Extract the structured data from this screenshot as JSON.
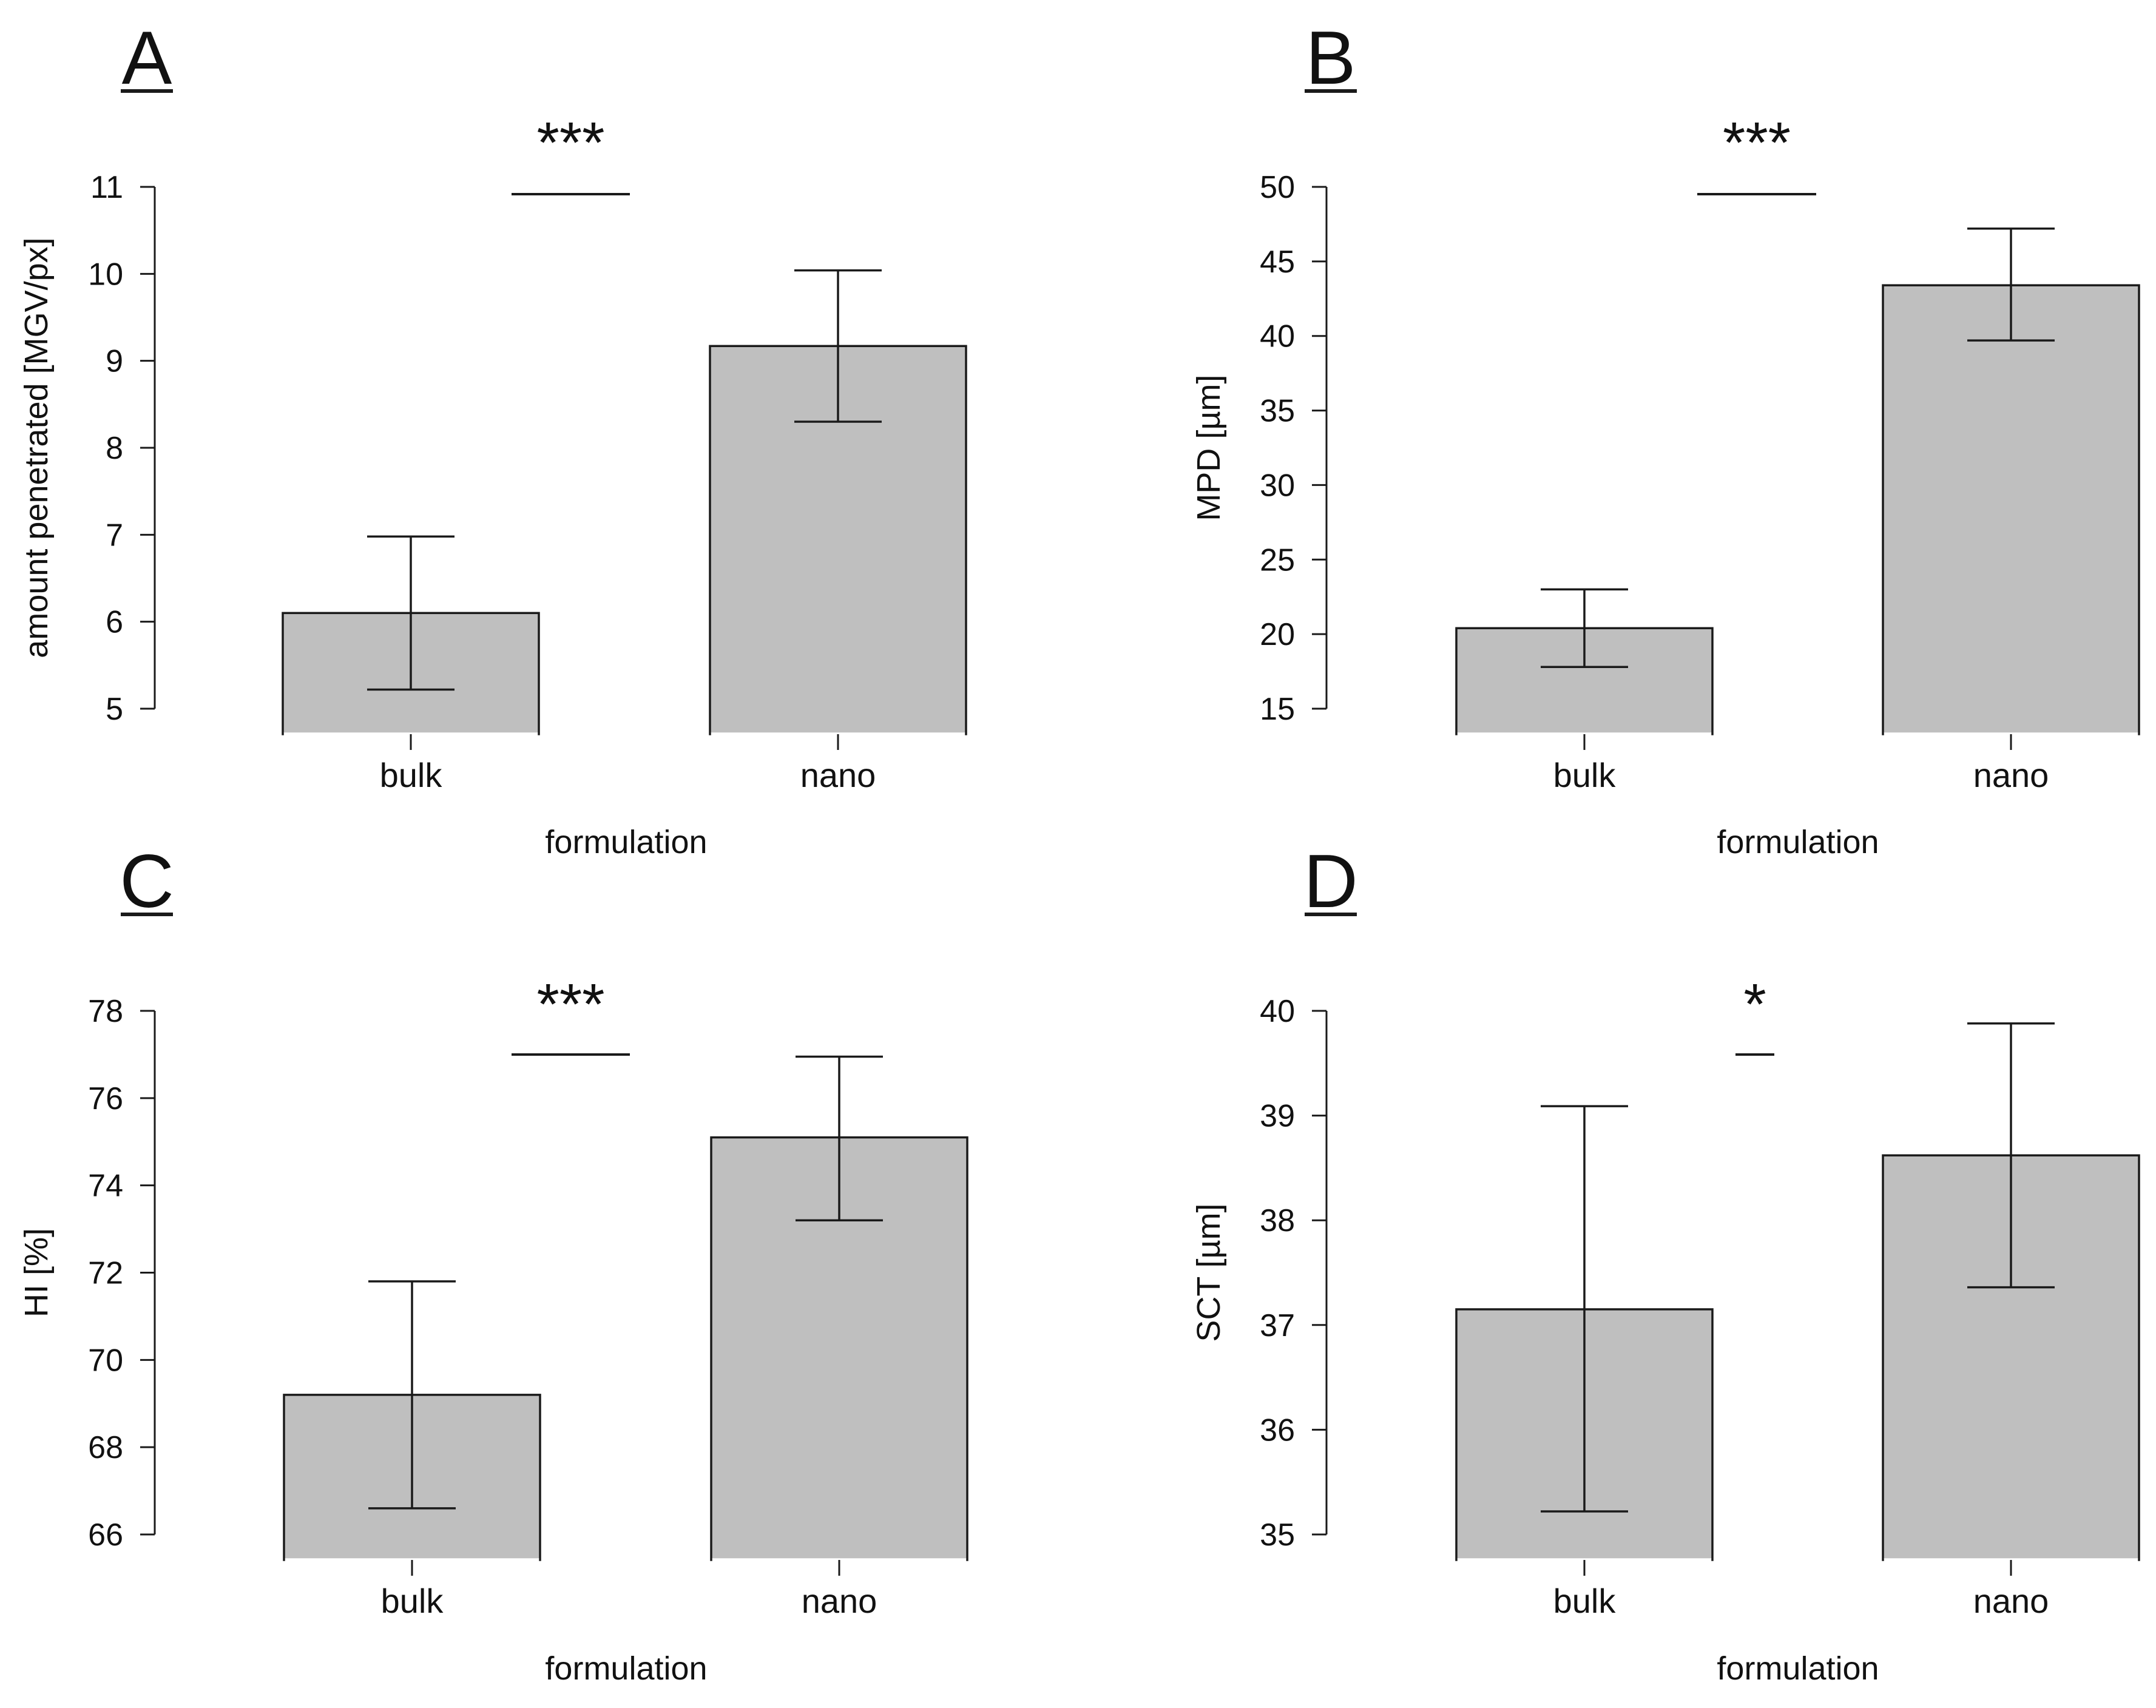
{
  "colors": {
    "bar_fill": "#bfbfbf",
    "line": "#1a1a1a",
    "background": "#ffffff"
  },
  "chart_data": [
    {
      "panel": "A",
      "type": "bar",
      "categories": [
        "bulk",
        "nano"
      ],
      "values": [
        6.1,
        9.17
      ],
      "error_low": [
        5.22,
        8.3
      ],
      "error_high": [
        6.98,
        10.04
      ],
      "xlabel": "formulation",
      "ylabel": "amount penetrated [MGV/px]",
      "ylim": [
        5,
        11
      ],
      "yticks": [
        5,
        6,
        7,
        8,
        9,
        10,
        11
      ],
      "significance": "***",
      "grid": false
    },
    {
      "panel": "B",
      "type": "bar",
      "categories": [
        "bulk",
        "nano"
      ],
      "values": [
        20.4,
        43.4
      ],
      "error_low": [
        17.8,
        39.7
      ],
      "error_high": [
        23.0,
        47.2
      ],
      "xlabel": "formulation",
      "ylabel": "MPD [µm]",
      "ylim": [
        15,
        50
      ],
      "yticks": [
        15,
        20,
        25,
        30,
        35,
        40,
        45,
        50
      ],
      "significance": "***",
      "grid": false
    },
    {
      "panel": "C",
      "type": "bar",
      "categories": [
        "bulk",
        "nano"
      ],
      "values": [
        69.2,
        75.1
      ],
      "error_low": [
        66.6,
        73.2
      ],
      "error_high": [
        71.8,
        76.95
      ],
      "xlabel": "formulation",
      "ylabel": "HI [%]",
      "ylim": [
        66,
        78
      ],
      "yticks": [
        66,
        68,
        70,
        72,
        74,
        76,
        78
      ],
      "significance": "***",
      "grid": false
    },
    {
      "panel": "D",
      "type": "bar",
      "categories": [
        "bulk",
        "nano"
      ],
      "values": [
        37.15,
        38.62
      ],
      "error_low": [
        35.22,
        37.36
      ],
      "error_high": [
        39.09,
        39.88
      ],
      "xlabel": "formulation",
      "ylabel": "SCT [µm]",
      "ylim": [
        35,
        40
      ],
      "yticks": [
        35,
        36,
        37,
        38,
        39,
        40
      ],
      "significance": "*",
      "grid": false
    }
  ]
}
